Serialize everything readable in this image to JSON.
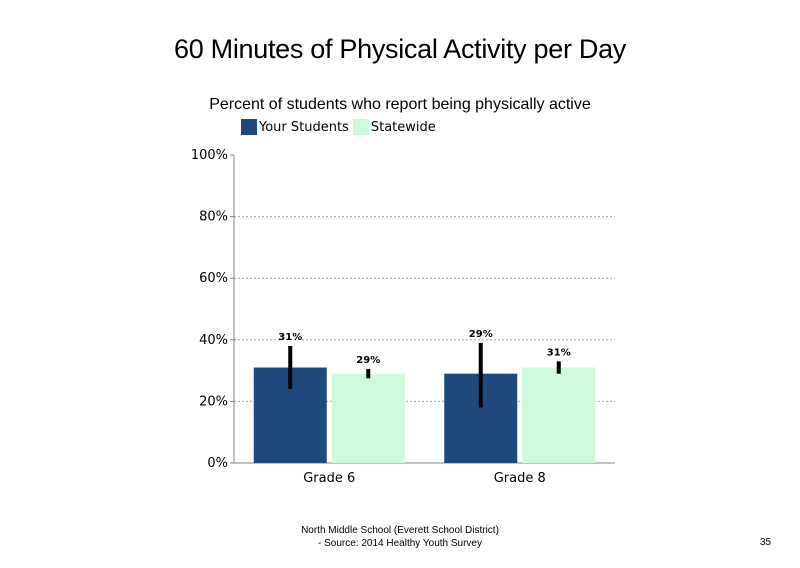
{
  "chart_data": {
    "type": "bar",
    "title": "60 Minutes of Physical Activity per Day",
    "subtitle": "Percent of students  who report being physically active",
    "categories": [
      "Grade 6",
      "Grade 8"
    ],
    "series": [
      {
        "name": "Your Students",
        "color": "#1F497D",
        "values": [
          31,
          29
        ],
        "labels": [
          "31%",
          "29%"
        ],
        "error_low": [
          24,
          18
        ],
        "error_high": [
          38,
          39
        ]
      },
      {
        "name": "Statewide",
        "color": "#CCFADB",
        "values": [
          29,
          31
        ],
        "labels": [
          "29%",
          "31%"
        ],
        "error_low": [
          27.5,
          29
        ],
        "error_high": [
          30.5,
          33
        ]
      }
    ],
    "ylim": [
      0,
      100
    ],
    "yticks": [
      0,
      20,
      40,
      60,
      80,
      100
    ],
    "ytick_labels": [
      "0%",
      "20%",
      "40%",
      "60%",
      "80%",
      "100%"
    ],
    "grid": true,
    "legend": "top"
  },
  "footer": {
    "line1": "North Middle School (Everett School District)",
    "line2": "- Source: 2014 Healthy  Youth Survey"
  },
  "page_number": "35"
}
